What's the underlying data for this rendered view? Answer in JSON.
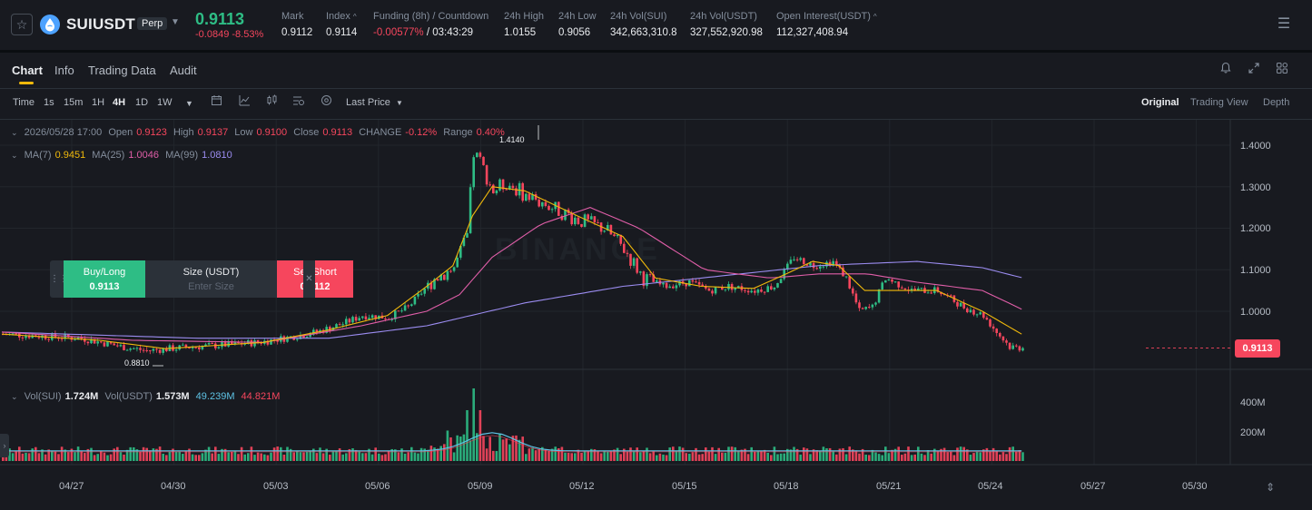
{
  "header": {
    "symbol": "SUIUSDT",
    "badge": "Perp",
    "last_price": "0.9113",
    "change_abs": "-0.0849",
    "change_pct": "-8.53%",
    "stats": [
      {
        "label": "Mark",
        "value": "0.9112"
      },
      {
        "label": "Index",
        "value": "0.9114"
      },
      {
        "label": "Funding (8h) / Countdown",
        "funding": "-0.00577%",
        "countdown": "/ 03:43:29"
      },
      {
        "label": "24h High",
        "value": "1.0155"
      },
      {
        "label": "24h Low",
        "value": "0.9056"
      },
      {
        "label": "24h Vol(SUI)",
        "value": "342,663,310.8"
      },
      {
        "label": "24h Vol(USDT)",
        "value": "327,552,920.98"
      },
      {
        "label": "Open Interest(USDT)",
        "value": "112,327,408.94"
      }
    ]
  },
  "tabs": [
    "Chart",
    "Info",
    "Trading Data",
    "Audit"
  ],
  "toolbar": {
    "time_label": "Time",
    "intervals": [
      "1s",
      "15m",
      "1H",
      "4H",
      "1D",
      "1W"
    ],
    "active_interval": "4H",
    "price_type": "Last Price",
    "views": [
      "Original",
      "Trading View",
      "Depth"
    ],
    "active_view": "Original"
  },
  "ohlc": {
    "date": "2026/05/28 17:00",
    "open_label": "Open",
    "open": "0.9123",
    "high_label": "High",
    "high": "0.9137",
    "low_label": "Low",
    "low": "0.9100",
    "close_label": "Close",
    "close": "0.9113",
    "change_label": "CHANGE",
    "change": "-0.12%",
    "range_label": "Range",
    "range": "0.40%"
  },
  "ma": {
    "ma7_label": "MA(7)",
    "ma7": "0.9451",
    "ma25_label": "MA(25)",
    "ma25": "1.0046",
    "ma99_label": "MA(99)",
    "ma99": "1.0810"
  },
  "volume": {
    "sui_label": "Vol(SUI)",
    "sui": "1.724M",
    "usdt_label": "Vol(USDT)",
    "usdt": "1.573M",
    "ma1": "49.239M",
    "ma2": "44.821M"
  },
  "order_widget": {
    "buy_label": "Buy/Long",
    "buy_price": "0.9113",
    "size_label": "Size (USDT)",
    "size_placeholder": "Enter Size",
    "sell_label": "Sell/Short",
    "sell_price": "0.9112"
  },
  "watermark": "BINANCE",
  "price_tag": "0.9113",
  "high_marker": "1.4140",
  "low_marker": "0.8810",
  "colors": {
    "up": "#2ebd85",
    "down": "#f6465d",
    "ma7": "#f0b90b",
    "ma25": "#e05ea8",
    "ma99": "#9b8cf0",
    "accent": "#f0b90b"
  },
  "chart_data": {
    "type": "candlestick",
    "x_ticks": [
      "04/27",
      "04/30",
      "05/03",
      "05/06",
      "05/09",
      "05/12",
      "05/15",
      "05/18",
      "05/21",
      "05/24",
      "05/27",
      "05/30"
    ],
    "y_ticks": [
      "1.4000",
      "1.3000",
      "1.2000",
      "1.1000",
      "1.0000"
    ],
    "ylim": [
      0.86,
      1.43
    ],
    "vol_ticks": [
      "400M",
      "200M"
    ],
    "close_path": [
      [
        0,
        0.945
      ],
      [
        12,
        0.94
      ],
      [
        24,
        0.935
      ],
      [
        36,
        0.915
      ],
      [
        44,
        0.905
      ],
      [
        54,
        0.912
      ],
      [
        66,
        0.918
      ],
      [
        78,
        0.925
      ],
      [
        86,
        0.935
      ],
      [
        96,
        0.95
      ],
      [
        104,
        0.97
      ],
      [
        110,
        0.99
      ],
      [
        118,
        0.985
      ],
      [
        124,
        1.01
      ],
      [
        132,
        1.08
      ],
      [
        138,
        1.105
      ],
      [
        142,
        1.18
      ],
      [
        144,
        1.38
      ],
      [
        146,
        1.36
      ],
      [
        150,
        1.29
      ],
      [
        154,
        1.31
      ],
      [
        160,
        1.28
      ],
      [
        168,
        1.25
      ],
      [
        176,
        1.22
      ],
      [
        184,
        1.2
      ],
      [
        190,
        1.15
      ],
      [
        196,
        1.08
      ],
      [
        202,
        1.06
      ],
      [
        210,
        1.07
      ],
      [
        216,
        1.05
      ],
      [
        222,
        1.06
      ],
      [
        230,
        1.05
      ],
      [
        236,
        1.06
      ],
      [
        242,
        1.13
      ],
      [
        248,
        1.11
      ],
      [
        254,
        1.12
      ],
      [
        258,
        1.08
      ],
      [
        262,
        1.0
      ],
      [
        266,
        1.01
      ],
      [
        270,
        1.08
      ],
      [
        278,
        1.05
      ],
      [
        286,
        1.05
      ],
      [
        294,
        1.01
      ],
      [
        300,
        0.99
      ],
      [
        304,
        0.95
      ],
      [
        308,
        0.915
      ],
      [
        312,
        0.9113
      ]
    ],
    "ma7_path": [
      [
        0,
        0.945
      ],
      [
        30,
        0.93
      ],
      [
        50,
        0.91
      ],
      [
        80,
        0.925
      ],
      [
        100,
        0.955
      ],
      [
        118,
        0.99
      ],
      [
        130,
        1.06
      ],
      [
        138,
        1.11
      ],
      [
        144,
        1.23
      ],
      [
        150,
        1.3
      ],
      [
        160,
        1.29
      ],
      [
        176,
        1.23
      ],
      [
        190,
        1.18
      ],
      [
        200,
        1.08
      ],
      [
        214,
        1.06
      ],
      [
        230,
        1.055
      ],
      [
        240,
        1.09
      ],
      [
        248,
        1.12
      ],
      [
        256,
        1.11
      ],
      [
        264,
        1.05
      ],
      [
        274,
        1.05
      ],
      [
        286,
        1.05
      ],
      [
        300,
        1.0
      ],
      [
        312,
        0.945
      ]
    ],
    "ma25_path": [
      [
        0,
        0.95
      ],
      [
        40,
        0.93
      ],
      [
        80,
        0.925
      ],
      [
        110,
        0.965
      ],
      [
        130,
        1.0
      ],
      [
        140,
        1.04
      ],
      [
        150,
        1.13
      ],
      [
        165,
        1.21
      ],
      [
        180,
        1.25
      ],
      [
        195,
        1.2
      ],
      [
        215,
        1.1
      ],
      [
        235,
        1.08
      ],
      [
        250,
        1.09
      ],
      [
        265,
        1.09
      ],
      [
        280,
        1.07
      ],
      [
        300,
        1.05
      ],
      [
        312,
        1.005
      ]
    ],
    "ma99_path": [
      [
        0,
        0.95
      ],
      [
        60,
        0.935
      ],
      [
        100,
        0.935
      ],
      [
        130,
        0.965
      ],
      [
        160,
        1.02
      ],
      [
        190,
        1.06
      ],
      [
        220,
        1.085
      ],
      [
        250,
        1.11
      ],
      [
        280,
        1.12
      ],
      [
        300,
        1.105
      ],
      [
        312,
        1.081
      ]
    ]
  }
}
